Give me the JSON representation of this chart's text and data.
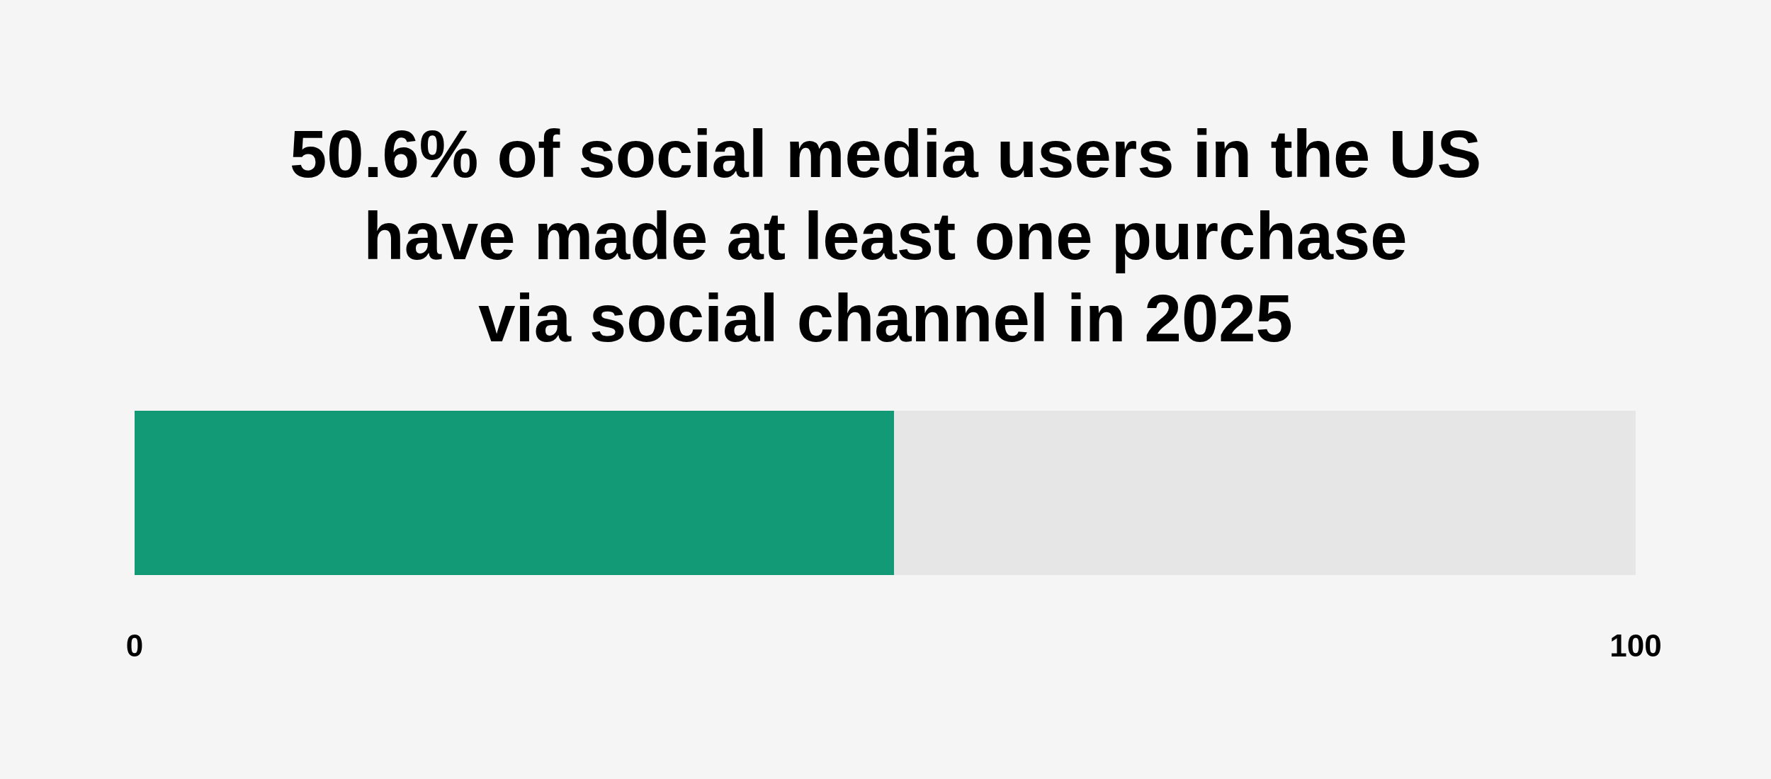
{
  "chart_data": {
    "type": "bar",
    "title": "50.6% of social media users in the US\nhave made at least one purchase\nvia social channel in 2025",
    "orientation": "horizontal",
    "stacked": true,
    "categories": [
      null
    ],
    "series": [
      {
        "color": "#129a77",
        "values": [
          50.6
        ]
      },
      {
        "color": "#e6e6e6",
        "values": [
          49.4
        ]
      }
    ],
    "xlim": [
      0,
      100
    ],
    "xticks": [
      0,
      100
    ]
  }
}
